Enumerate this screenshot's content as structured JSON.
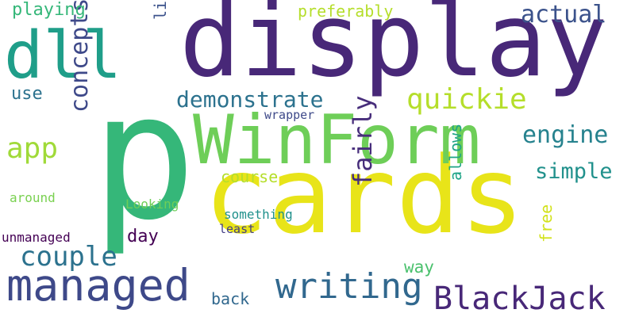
{
  "cloud": {
    "background": "#ffffff",
    "palette": {
      "dark_purple": "#440154",
      "purple": "#482878",
      "indigo": "#3e4989",
      "blue": "#31688e",
      "teal_blue": "#26828e",
      "teal": "#1f9e89",
      "green_teal": "#35b779",
      "green": "#6ece58",
      "lime": "#b5de2b",
      "yellow": "#fde725"
    },
    "words": [
      {
        "text": "p",
        "weight": 100,
        "color": "#35b779",
        "orientation": "horizontal"
      },
      {
        "text": "display",
        "weight": 92,
        "color": "#482878",
        "orientation": "horizontal"
      },
      {
        "text": "cards",
        "weight": 90,
        "color": "#e8e419",
        "orientation": "horizontal"
      },
      {
        "text": "WinForm",
        "weight": 66,
        "color": "#6ece58",
        "orientation": "horizontal"
      },
      {
        "text": "dll",
        "weight": 62,
        "color": "#1f9e89",
        "orientation": "horizontal"
      },
      {
        "text": "managed",
        "weight": 38,
        "color": "#3e4989",
        "orientation": "horizontal"
      },
      {
        "text": "BlackJack",
        "weight": 34,
        "color": "#482878",
        "orientation": "horizontal"
      },
      {
        "text": "writing",
        "weight": 34,
        "color": "#31688e",
        "orientation": "horizontal"
      },
      {
        "text": "quickie",
        "weight": 30,
        "color": "#b5de2b",
        "orientation": "horizontal"
      },
      {
        "text": "demonstrate",
        "weight": 28,
        "color": "#2c728e",
        "orientation": "horizontal"
      },
      {
        "text": "app",
        "weight": 28,
        "color": "#a0da39",
        "orientation": "horizontal"
      },
      {
        "text": "couple",
        "weight": 28,
        "color": "#2c728e",
        "orientation": "horizontal"
      },
      {
        "text": "concepts",
        "weight": 26,
        "color": "#3e4989",
        "orientation": "vertical"
      },
      {
        "text": "fairly",
        "weight": 26,
        "color": "#472d7b",
        "orientation": "vertical"
      },
      {
        "text": "engine",
        "weight": 24,
        "color": "#26828e",
        "orientation": "horizontal"
      },
      {
        "text": "actual",
        "weight": 24,
        "color": "#3b528b",
        "orientation": "horizontal"
      },
      {
        "text": "simple",
        "weight": 22,
        "color": "#21918c",
        "orientation": "horizontal"
      },
      {
        "text": "playing",
        "weight": 20,
        "color": "#35b779",
        "orientation": "horizontal"
      },
      {
        "text": "preferably",
        "weight": 18,
        "color": "#b5de2b",
        "orientation": "horizontal"
      },
      {
        "text": "library",
        "weight": 18,
        "color": "#3b528b",
        "orientation": "vertical"
      },
      {
        "text": "use",
        "weight": 18,
        "color": "#2c728e",
        "orientation": "horizontal"
      },
      {
        "text": "course",
        "weight": 18,
        "color": "#b5de2b",
        "orientation": "horizontal"
      },
      {
        "text": "allows",
        "weight": 18,
        "color": "#20a486",
        "orientation": "vertical"
      },
      {
        "text": "day",
        "weight": 18,
        "color": "#440154",
        "orientation": "horizontal"
      },
      {
        "text": "way",
        "weight": 18,
        "color": "#4ac16d",
        "orientation": "horizontal"
      },
      {
        "text": "back",
        "weight": 18,
        "color": "#31688e",
        "orientation": "horizontal"
      },
      {
        "text": "free",
        "weight": 18,
        "color": "#d2e21b",
        "orientation": "vertical"
      },
      {
        "text": "wrapper",
        "weight": 14,
        "color": "#3e4989",
        "orientation": "horizontal"
      },
      {
        "text": "Looking",
        "weight": 14,
        "color": "#6ece58",
        "orientation": "horizontal"
      },
      {
        "text": "around",
        "weight": 14,
        "color": "#7ad151",
        "orientation": "horizontal"
      },
      {
        "text": "something",
        "weight": 14,
        "color": "#21918c",
        "orientation": "horizontal"
      },
      {
        "text": "least",
        "weight": 14,
        "color": "#433e85",
        "orientation": "horizontal"
      },
      {
        "text": "unmanaged",
        "weight": 14,
        "color": "#440154",
        "orientation": "horizontal"
      }
    ]
  }
}
